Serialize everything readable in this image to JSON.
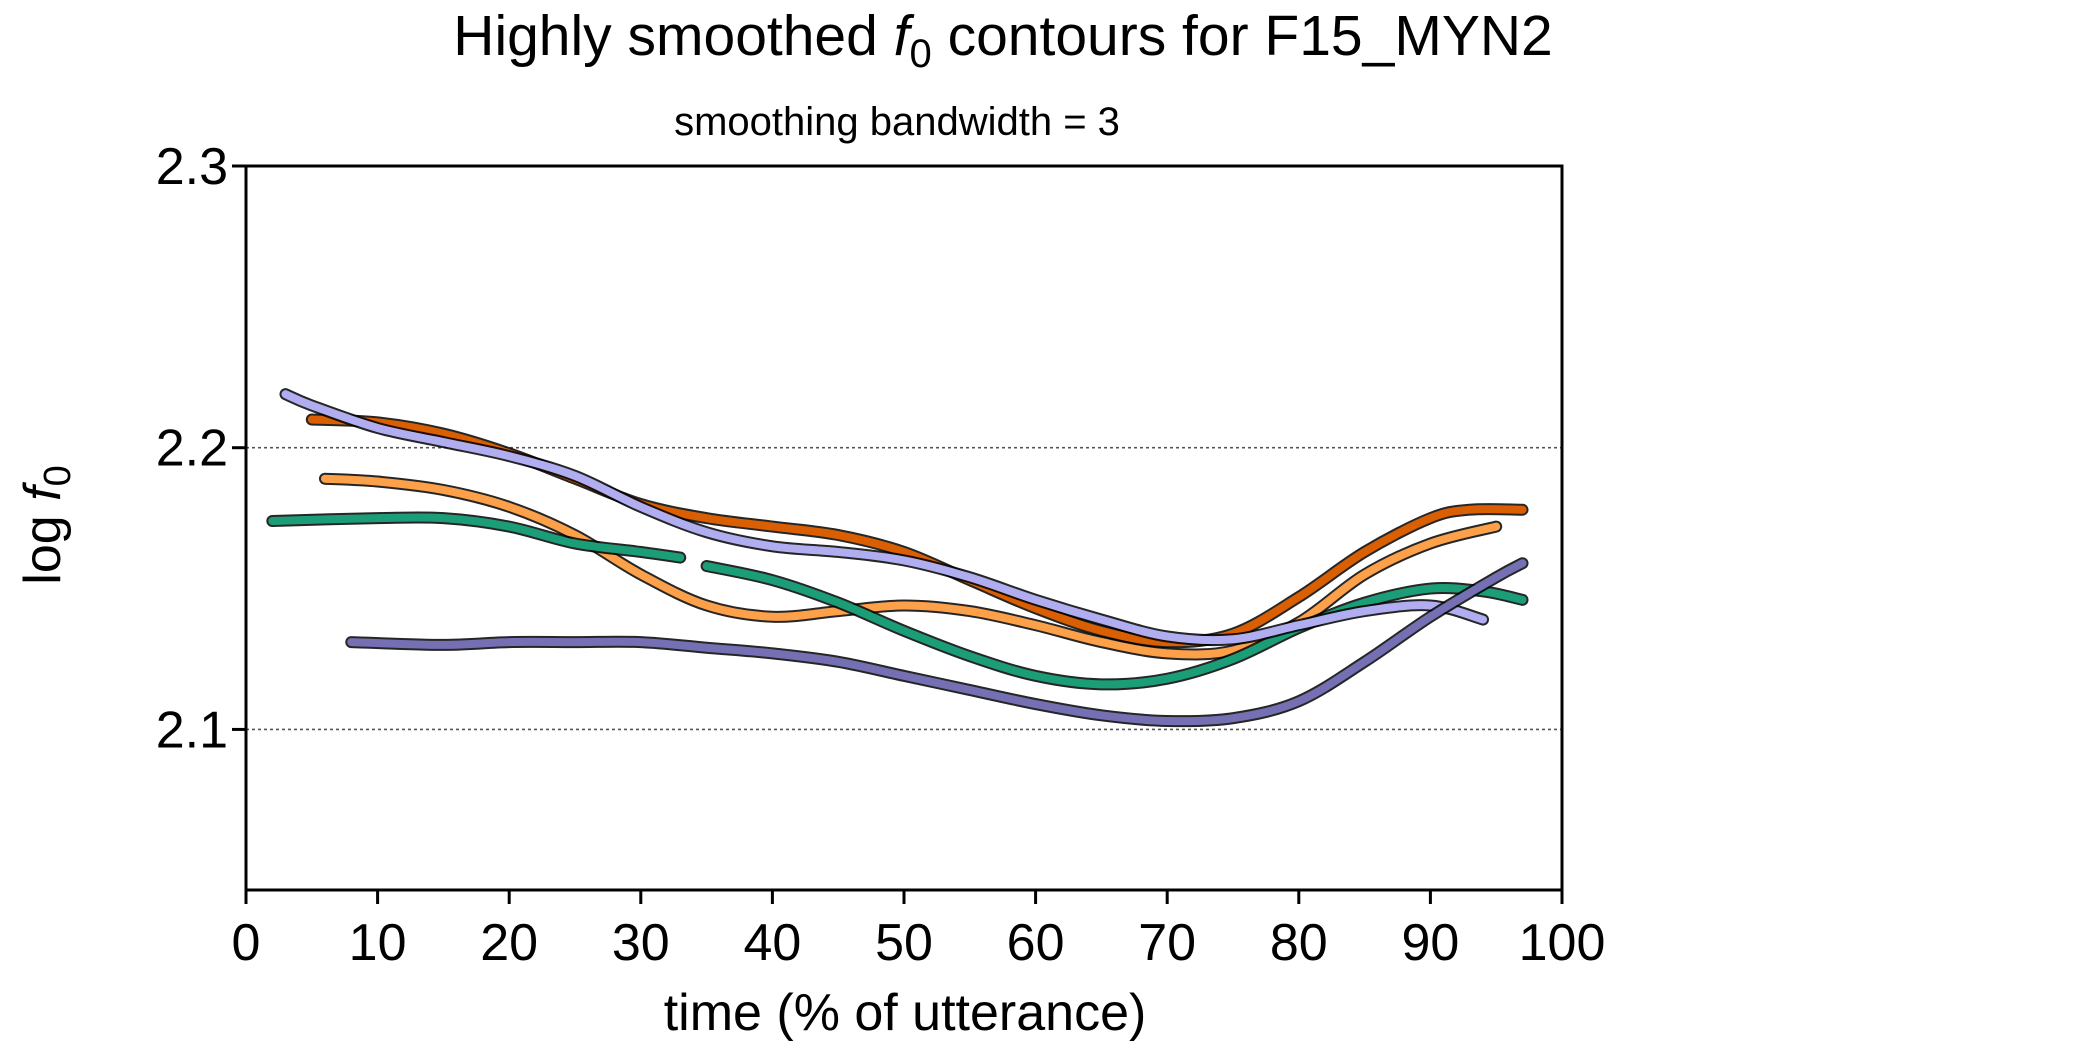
{
  "chart_data": {
    "type": "line",
    "title_prefix": "Highly smoothed ",
    "title_symbol": "f",
    "title_subscript": "0",
    "title_suffix": " contours for F15_MYN2",
    "subtitle": "smoothing bandwidth = 3",
    "xlabel": "time (% of utterance)",
    "ylabel_prefix": "log ",
    "ylabel_symbol": "f",
    "ylabel_subscript": "0",
    "xlim": [
      0,
      100
    ],
    "ylim": [
      2.043,
      2.3
    ],
    "x_ticks": [
      0,
      10,
      20,
      30,
      40,
      50,
      60,
      70,
      80,
      90,
      100
    ],
    "x_tick_labels": [
      "0",
      "10",
      "20",
      "30",
      "40",
      "50",
      "60",
      "70",
      "80",
      "90",
      "100"
    ],
    "y_ticks": [
      2.1,
      2.2,
      2.3
    ],
    "y_tick_labels": [
      "2.1",
      "2.2",
      "2.3"
    ],
    "gridlines_y": [
      2.1,
      2.2,
      2.3
    ],
    "grid": "horizontal dotted",
    "colors": {
      "dark_orange": "#D95F02",
      "light_orange": "#FDA04A",
      "green": "#1B9E77",
      "lavender": "#B0AEF0",
      "purple": "#7570B3",
      "gridline": "#555555",
      "outline": "#000000"
    },
    "series": [
      {
        "color": "#D95F02",
        "segments": [
          [
            [
              5,
              2.21
            ],
            [
              10,
              2.209
            ],
            [
              15,
              2.205
            ],
            [
              20,
              2.198
            ],
            [
              25,
              2.189
            ],
            [
              30,
              2.18
            ],
            [
              35,
              2.175
            ],
            [
              40,
              2.172
            ],
            [
              45,
              2.169
            ],
            [
              50,
              2.163
            ],
            [
              55,
              2.153
            ],
            [
              60,
              2.143
            ],
            [
              65,
              2.135
            ],
            [
              70,
              2.131
            ],
            [
              75,
              2.134
            ],
            [
              80,
              2.147
            ],
            [
              85,
              2.163
            ],
            [
              90,
              2.175
            ],
            [
              93,
              2.178
            ],
            [
              97,
              2.178
            ]
          ]
        ]
      },
      {
        "color": "#FDA04A",
        "segments": [
          [
            [
              6,
              2.189
            ],
            [
              10,
              2.188
            ],
            [
              15,
              2.185
            ],
            [
              20,
              2.179
            ],
            [
              25,
              2.169
            ],
            [
              30,
              2.155
            ],
            [
              35,
              2.144
            ],
            [
              40,
              2.14
            ],
            [
              45,
              2.142
            ],
            [
              50,
              2.144
            ],
            [
              55,
              2.142
            ],
            [
              60,
              2.137
            ],
            [
              65,
              2.131
            ],
            [
              70,
              2.127
            ],
            [
              75,
              2.128
            ],
            [
              80,
              2.138
            ],
            [
              85,
              2.155
            ],
            [
              90,
              2.166
            ],
            [
              95,
              2.172
            ]
          ]
        ]
      },
      {
        "color": "#1B9E77",
        "segments": [
          [
            [
              2,
              2.174
            ],
            [
              10,
              2.175
            ],
            [
              15,
              2.175
            ],
            [
              20,
              2.172
            ],
            [
              25,
              2.166
            ],
            [
              30,
              2.163
            ],
            [
              33,
              2.161
            ]
          ],
          [
            [
              35,
              2.158
            ],
            [
              40,
              2.153
            ],
            [
              45,
              2.145
            ],
            [
              50,
              2.135
            ],
            [
              55,
              2.126
            ],
            [
              60,
              2.119
            ],
            [
              65,
              2.116
            ],
            [
              70,
              2.118
            ],
            [
              75,
              2.125
            ],
            [
              80,
              2.136
            ],
            [
              85,
              2.145
            ],
            [
              90,
              2.15
            ],
            [
              94,
              2.149
            ],
            [
              97,
              2.146
            ]
          ]
        ]
      },
      {
        "color": "#B0AEF0",
        "segments": [
          [
            [
              3,
              2.219
            ],
            [
              5,
              2.215
            ],
            [
              10,
              2.207
            ],
            [
              15,
              2.202
            ],
            [
              20,
              2.197
            ],
            [
              25,
              2.19
            ],
            [
              30,
              2.179
            ],
            [
              35,
              2.17
            ],
            [
              40,
              2.165
            ],
            [
              45,
              2.163
            ],
            [
              50,
              2.16
            ],
            [
              55,
              2.154
            ],
            [
              60,
              2.146
            ],
            [
              65,
              2.139
            ],
            [
              70,
              2.133
            ],
            [
              75,
              2.132
            ],
            [
              80,
              2.137
            ],
            [
              85,
              2.142
            ],
            [
              90,
              2.144
            ],
            [
              94,
              2.139
            ]
          ]
        ]
      },
      {
        "color": "#7570B3",
        "segments": [
          [
            [
              8,
              2.131
            ],
            [
              15,
              2.13
            ],
            [
              20,
              2.131
            ],
            [
              25,
              2.131
            ],
            [
              30,
              2.131
            ],
            [
              35,
              2.129
            ],
            [
              40,
              2.127
            ],
            [
              45,
              2.124
            ],
            [
              50,
              2.119
            ],
            [
              55,
              2.114
            ],
            [
              60,
              2.109
            ],
            [
              65,
              2.105
            ],
            [
              70,
              2.103
            ],
            [
              75,
              2.104
            ],
            [
              80,
              2.11
            ],
            [
              85,
              2.124
            ],
            [
              90,
              2.14
            ],
            [
              95,
              2.154
            ],
            [
              97,
              2.159
            ]
          ]
        ]
      }
    ]
  }
}
